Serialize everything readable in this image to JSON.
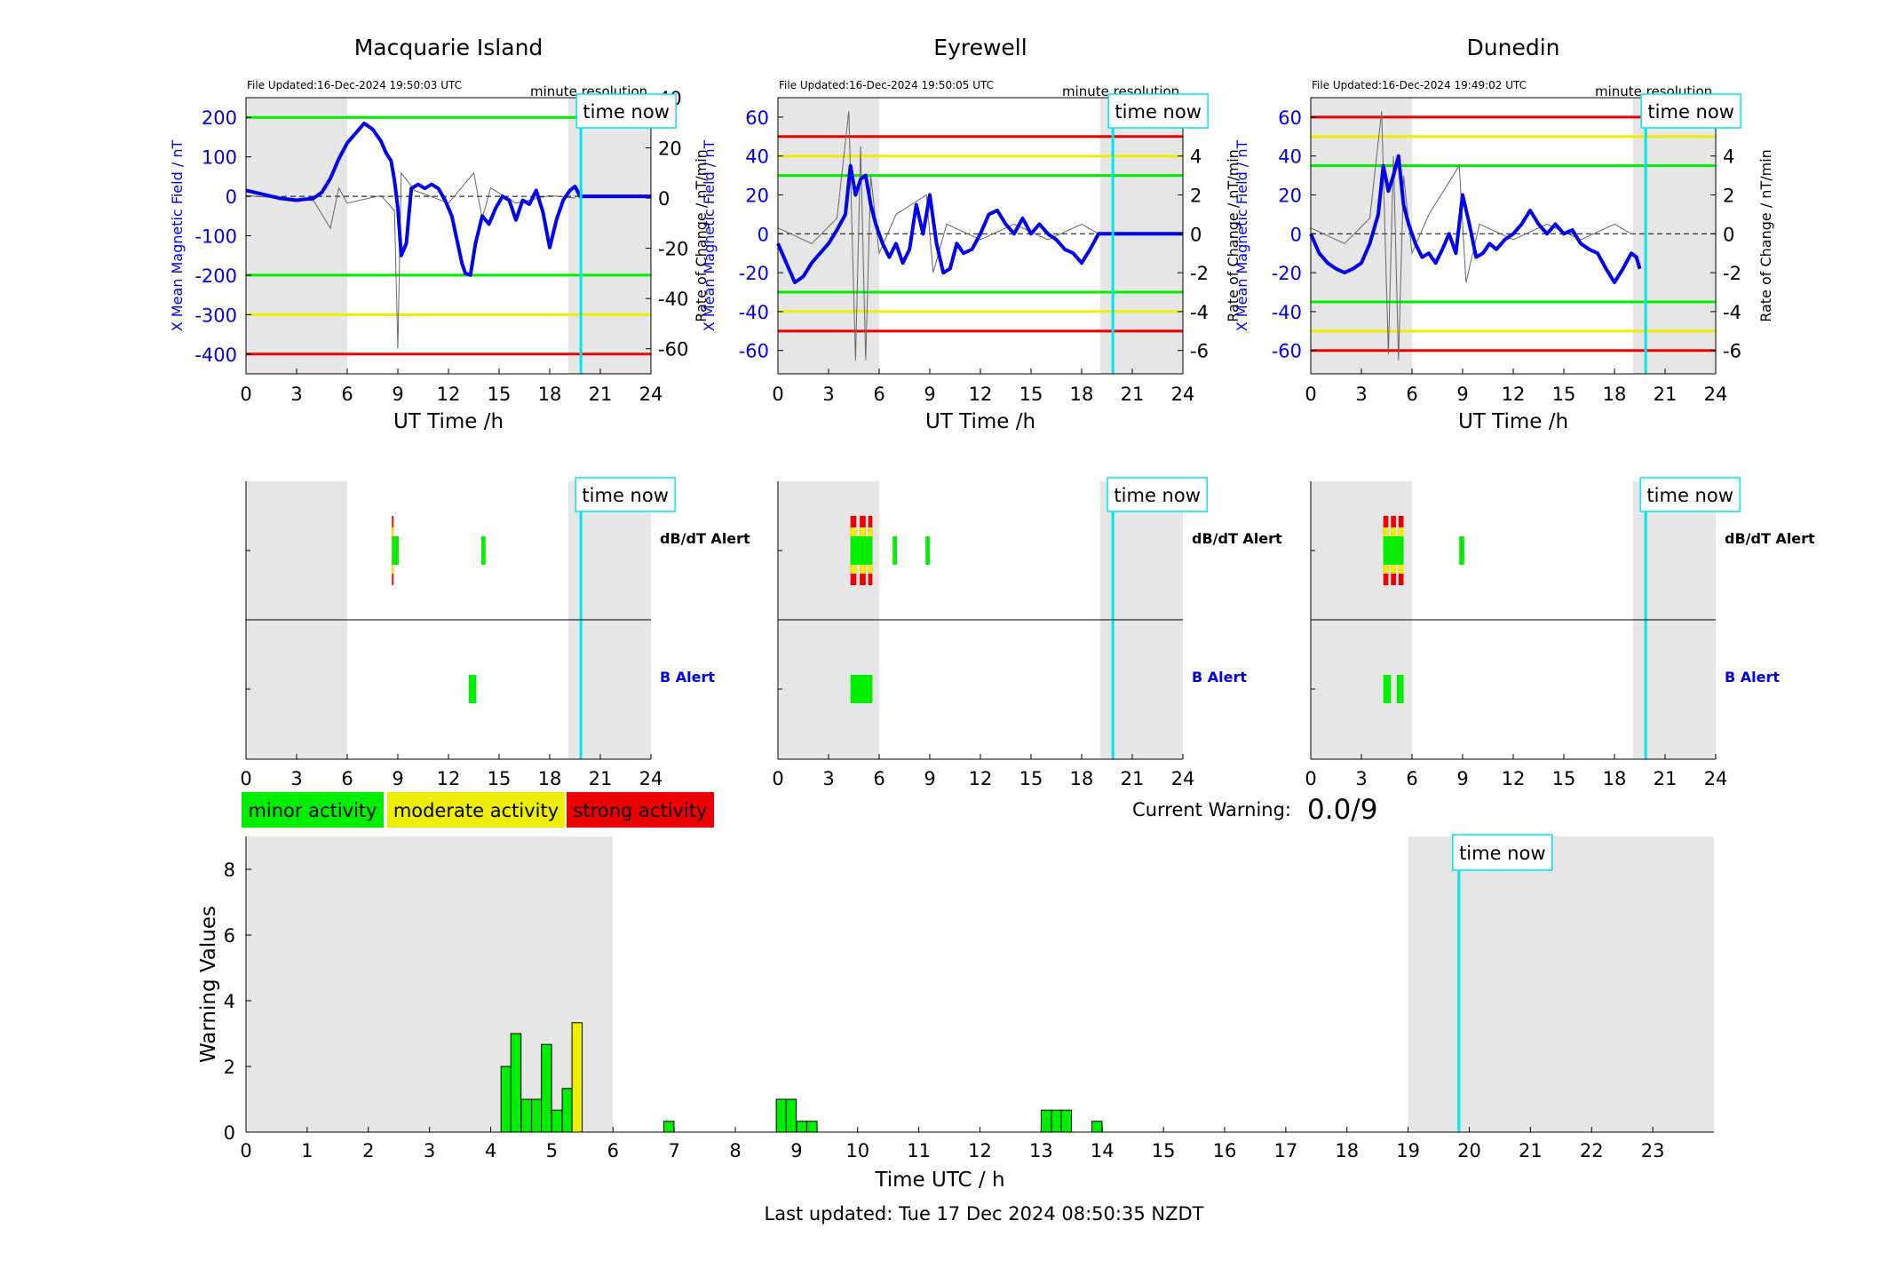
{
  "stations": [
    {
      "name": "Macquarie Island",
      "file_updated": "File Updated:16-Dec-2024 19:50:03 UTC",
      "resolution": "minute resolution",
      "time_now_label": "time now",
      "y_left_label": "X Mean Magnetic Field / nT",
      "y_right_label": "Rate of Change / nT/min",
      "x_label": "UT Time /h",
      "x_ticks": [
        0,
        3,
        6,
        9,
        12,
        15,
        18,
        21,
        24
      ],
      "y_left_range": [
        -450,
        250
      ],
      "y_left_ticks": [
        200,
        100,
        0,
        -100,
        -200,
        -300,
        -400
      ],
      "y_right_range": [
        -70,
        40
      ],
      "y_right_ticks": [
        40,
        20,
        0,
        -20,
        -40,
        -60
      ],
      "thresholds": [
        {
          "value": 200,
          "color": "#00ee00"
        },
        {
          "value": -200,
          "color": "#00ee00"
        },
        {
          "value": -300,
          "color": "#eeee00"
        },
        {
          "value": -400,
          "color": "#ee0000"
        }
      ],
      "night_bands": [
        [
          0,
          6
        ],
        [
          19.1,
          24
        ]
      ],
      "time_now": 19.85,
      "field_x": [
        0,
        1,
        2,
        3,
        4,
        4.5,
        5,
        5.5,
        6,
        6.5,
        7,
        7.5,
        8,
        8.3,
        8.6,
        8.8,
        9,
        9.2,
        9.5,
        9.8,
        10.2,
        10.6,
        11,
        11.4,
        11.8,
        12.2,
        12.5,
        12.8,
        13,
        13.3,
        13.6,
        14,
        14.4,
        14.8,
        15.2,
        15.6,
        16,
        16.4,
        16.8,
        17.2,
        17.6,
        18,
        18.4,
        18.8,
        19.2,
        19.5,
        19.8,
        24
      ],
      "field_y": [
        15,
        5,
        -5,
        -10,
        -5,
        10,
        45,
        95,
        135,
        160,
        185,
        170,
        140,
        110,
        90,
        40,
        -30,
        -150,
        -120,
        20,
        30,
        20,
        30,
        20,
        -10,
        -50,
        -110,
        -170,
        -195,
        -200,
        -120,
        -50,
        -70,
        -30,
        0,
        -10,
        -60,
        -10,
        -20,
        15,
        -40,
        -130,
        -60,
        -10,
        15,
        25,
        0,
        0
      ],
      "rate_x": [
        0,
        4,
        5,
        5.5,
        6,
        8,
        8.8,
        9,
        9.2,
        10,
        12,
        13.5,
        14,
        14.5,
        16,
        18,
        19.5
      ],
      "rate_y": [
        1,
        -1,
        -12,
        4,
        -2,
        1,
        -5,
        -60,
        10,
        3,
        -2,
        10,
        -8,
        4,
        -2,
        1,
        0
      ],
      "alerts": {
        "dbdt_label": "dB/dT Alert",
        "b_label": "B Alert",
        "dbdt": [
          {
            "start": 8.65,
            "end": 8.75,
            "level": 3
          },
          {
            "start": 8.75,
            "end": 9.05,
            "level": 1
          },
          {
            "start": 13.95,
            "end": 14.2,
            "level": 1
          }
        ],
        "b": [
          {
            "start": 13.2,
            "end": 13.65,
            "level": 1
          }
        ]
      }
    },
    {
      "name": "Eyrewell",
      "file_updated": "File Updated:16-Dec-2024 19:50:05 UTC",
      "resolution": "minute resolution",
      "time_now_label": "time now",
      "y_left_label": "X Mean Magnetic Field / nT",
      "y_right_label": "Rate of Change / nT/min",
      "x_label": "UT Time /h",
      "x_ticks": [
        0,
        3,
        6,
        9,
        12,
        15,
        18,
        21,
        24
      ],
      "y_left_range": [
        -72,
        70
      ],
      "y_left_ticks": [
        60,
        40,
        20,
        0,
        -20,
        -40,
        -60
      ],
      "y_right_range": [
        -7.2,
        7.0
      ],
      "y_right_ticks": [
        6,
        4,
        2,
        0,
        -2,
        -4,
        -6
      ],
      "thresholds": [
        {
          "value": 50,
          "color": "#ee0000"
        },
        {
          "value": 40,
          "color": "#eeee00"
        },
        {
          "value": 30,
          "color": "#00ee00"
        },
        {
          "value": -30,
          "color": "#00ee00"
        },
        {
          "value": -40,
          "color": "#eeee00"
        },
        {
          "value": -50,
          "color": "#ee0000"
        }
      ],
      "night_bands": [
        [
          0,
          6
        ],
        [
          19.1,
          24
        ]
      ],
      "time_now": 19.85,
      "field_x": [
        0,
        0.5,
        1,
        1.5,
        2,
        2.5,
        3,
        3.5,
        4,
        4.3,
        4.6,
        4.9,
        5.2,
        5.5,
        5.8,
        6.2,
        6.6,
        7,
        7.4,
        7.8,
        8.2,
        8.6,
        9,
        9.4,
        9.8,
        10.2,
        10.6,
        11,
        11.5,
        12,
        12.5,
        13,
        13.5,
        14,
        14.5,
        15,
        15.5,
        16,
        16.5,
        17,
        17.5,
        18,
        18.5,
        19,
        24
      ],
      "field_y": [
        -5,
        -15,
        -25,
        -22,
        -15,
        -10,
        -5,
        2,
        10,
        35,
        20,
        28,
        30,
        15,
        5,
        -5,
        -12,
        -5,
        -15,
        -8,
        15,
        0,
        20,
        -5,
        -20,
        -18,
        -5,
        -10,
        -8,
        0,
        10,
        12,
        5,
        0,
        8,
        0,
        5,
        0,
        -3,
        -8,
        -10,
        -15,
        -8,
        0,
        0
      ],
      "rate_x": [
        0,
        2,
        3.5,
        4.2,
        4.6,
        4.9,
        5.2,
        5.5,
        6,
        7,
        8.8,
        9.2,
        10,
        12,
        14,
        16,
        18,
        19
      ],
      "rate_y": [
        0.3,
        -0.5,
        0.8,
        6.3,
        -6.5,
        4.5,
        -6.5,
        3,
        -1,
        1,
        2,
        -2,
        0.5,
        -0.3,
        0.5,
        -0.3,
        0.5,
        0
      ],
      "alerts": {
        "dbdt_label": "dB/dT Alert",
        "b_label": "B Alert",
        "dbdt": [
          {
            "start": 4.3,
            "end": 4.65,
            "level": 3
          },
          {
            "start": 4.65,
            "end": 4.85,
            "level": 1
          },
          {
            "start": 4.85,
            "end": 5.2,
            "level": 3
          },
          {
            "start": 5.2,
            "end": 5.35,
            "level": 1
          },
          {
            "start": 5.35,
            "end": 5.6,
            "level": 3
          },
          {
            "start": 6.8,
            "end": 7.05,
            "level": 1
          },
          {
            "start": 8.75,
            "end": 9.0,
            "level": 1
          }
        ],
        "b": [
          {
            "start": 4.3,
            "end": 5.6,
            "level": 1
          }
        ]
      }
    },
    {
      "name": "Dunedin",
      "file_updated": "File Updated:16-Dec-2024 19:49:02 UTC",
      "resolution": "minute resolution",
      "time_now_label": "time now",
      "y_left_label": "X Mean Magnetic Field / nT",
      "y_right_label": "Rate of Change / nT/min",
      "x_label": "UT Time /h",
      "x_ticks": [
        0,
        3,
        6,
        9,
        12,
        15,
        18,
        21,
        24
      ],
      "y_left_range": [
        -72,
        70
      ],
      "y_left_ticks": [
        60,
        40,
        20,
        0,
        -20,
        -40,
        -60
      ],
      "y_right_range": [
        -7.2,
        7.0
      ],
      "y_right_ticks": [
        6,
        4,
        2,
        0,
        -2,
        -4,
        -6
      ],
      "thresholds": [
        {
          "value": 60,
          "color": "#ee0000"
        },
        {
          "value": 50,
          "color": "#eeee00"
        },
        {
          "value": 35,
          "color": "#00ee00"
        },
        {
          "value": -35,
          "color": "#00ee00"
        },
        {
          "value": -50,
          "color": "#eeee00"
        },
        {
          "value": -60,
          "color": "#ee0000"
        }
      ],
      "night_bands": [
        [
          0,
          6
        ],
        [
          19.1,
          24
        ]
      ],
      "time_now": 19.85,
      "field_x": [
        0,
        0.5,
        1,
        1.5,
        2,
        2.5,
        3,
        3.5,
        4,
        4.3,
        4.6,
        4.9,
        5.2,
        5.5,
        5.8,
        6.2,
        6.6,
        7,
        7.4,
        7.8,
        8.2,
        8.6,
        9,
        9.4,
        9.8,
        10.2,
        10.6,
        11,
        11.5,
        12,
        12.5,
        13,
        13.5,
        14,
        14.5,
        15,
        15.5,
        16,
        16.5,
        17,
        17.5,
        18,
        18.5,
        19,
        19.3,
        19.5
      ],
      "field_y": [
        0,
        -10,
        -15,
        -18,
        -20,
        -18,
        -15,
        -5,
        10,
        35,
        22,
        30,
        40,
        15,
        5,
        -5,
        -12,
        -10,
        -15,
        -8,
        0,
        -10,
        20,
        5,
        -12,
        -10,
        -5,
        -8,
        -3,
        0,
        5,
        12,
        5,
        0,
        5,
        0,
        2,
        -5,
        -8,
        -10,
        -18,
        -25,
        -18,
        -10,
        -12,
        -18
      ],
      "rate_x": [
        0,
        2,
        3.5,
        4.2,
        4.6,
        4.9,
        5.2,
        5.5,
        6,
        7,
        8.8,
        9.2,
        10,
        12,
        14,
        16,
        18,
        19
      ],
      "rate_y": [
        0.3,
        -0.5,
        0.8,
        6.3,
        -6.2,
        4,
        -6.5,
        3,
        -1,
        1,
        3.5,
        -2.5,
        0.5,
        -0.3,
        0.5,
        -0.3,
        0.5,
        0
      ],
      "alerts": {
        "dbdt_label": "dB/dT Alert",
        "b_label": "B Alert",
        "dbdt": [
          {
            "start": 4.3,
            "end": 4.6,
            "level": 3
          },
          {
            "start": 4.6,
            "end": 4.75,
            "level": 1
          },
          {
            "start": 4.75,
            "end": 5.05,
            "level": 3
          },
          {
            "start": 5.05,
            "end": 5.2,
            "level": 1
          },
          {
            "start": 5.2,
            "end": 5.5,
            "level": 3
          },
          {
            "start": 8.8,
            "end": 9.1,
            "level": 1
          }
        ],
        "b": [
          {
            "start": 4.3,
            "end": 4.75,
            "level": 1
          },
          {
            "start": 5.1,
            "end": 5.5,
            "level": 1
          }
        ]
      }
    }
  ],
  "legend": {
    "minor": "minor activity",
    "moderate": "moderate activity",
    "strong": "strong activity",
    "colors": {
      "minor": "#00ee00",
      "moderate": "#eeee00",
      "strong": "#ee0000"
    }
  },
  "current_warning": {
    "label": "Current Warning:",
    "value": "0.0/9"
  },
  "chart_data": {
    "type": "bar",
    "title": "",
    "xlabel": "Time UTC / h",
    "ylabel": "Warning Values",
    "xlim": [
      0,
      24
    ],
    "ylim": [
      0,
      9
    ],
    "x_ticks": [
      0,
      1,
      2,
      3,
      4,
      5,
      6,
      7,
      8,
      9,
      10,
      11,
      12,
      13,
      14,
      15,
      16,
      17,
      18,
      19,
      20,
      21,
      22,
      23
    ],
    "y_ticks": [
      0,
      2,
      4,
      6,
      8
    ],
    "night_bands": [
      [
        0,
        6
      ],
      [
        19,
        24
      ]
    ],
    "time_now": 19.83,
    "time_now_label": "time now",
    "bin_width_h": 0.1667,
    "bars": [
      {
        "x": 4.17,
        "value": 2.0,
        "level": "minor"
      },
      {
        "x": 4.33,
        "value": 3.0,
        "level": "minor"
      },
      {
        "x": 4.5,
        "value": 1.0,
        "level": "minor"
      },
      {
        "x": 4.67,
        "value": 1.0,
        "level": "minor"
      },
      {
        "x": 4.83,
        "value": 2.67,
        "level": "minor"
      },
      {
        "x": 5.0,
        "value": 0.67,
        "level": "minor"
      },
      {
        "x": 5.17,
        "value": 1.33,
        "level": "minor"
      },
      {
        "x": 5.33,
        "value": 3.33,
        "level": "moderate"
      },
      {
        "x": 6.83,
        "value": 0.33,
        "level": "minor"
      },
      {
        "x": 8.67,
        "value": 1.0,
        "level": "minor"
      },
      {
        "x": 8.83,
        "value": 1.0,
        "level": "minor"
      },
      {
        "x": 9.0,
        "value": 0.33,
        "level": "minor"
      },
      {
        "x": 9.17,
        "value": 0.33,
        "level": "minor"
      },
      {
        "x": 13.0,
        "value": 0.67,
        "level": "minor"
      },
      {
        "x": 13.17,
        "value": 0.67,
        "level": "minor"
      },
      {
        "x": 13.33,
        "value": 0.67,
        "level": "minor"
      },
      {
        "x": 13.83,
        "value": 0.33,
        "level": "minor"
      }
    ]
  },
  "footer": {
    "last_updated": "Last updated: Tue 17 Dec 2024 08:50:35 NZDT"
  }
}
